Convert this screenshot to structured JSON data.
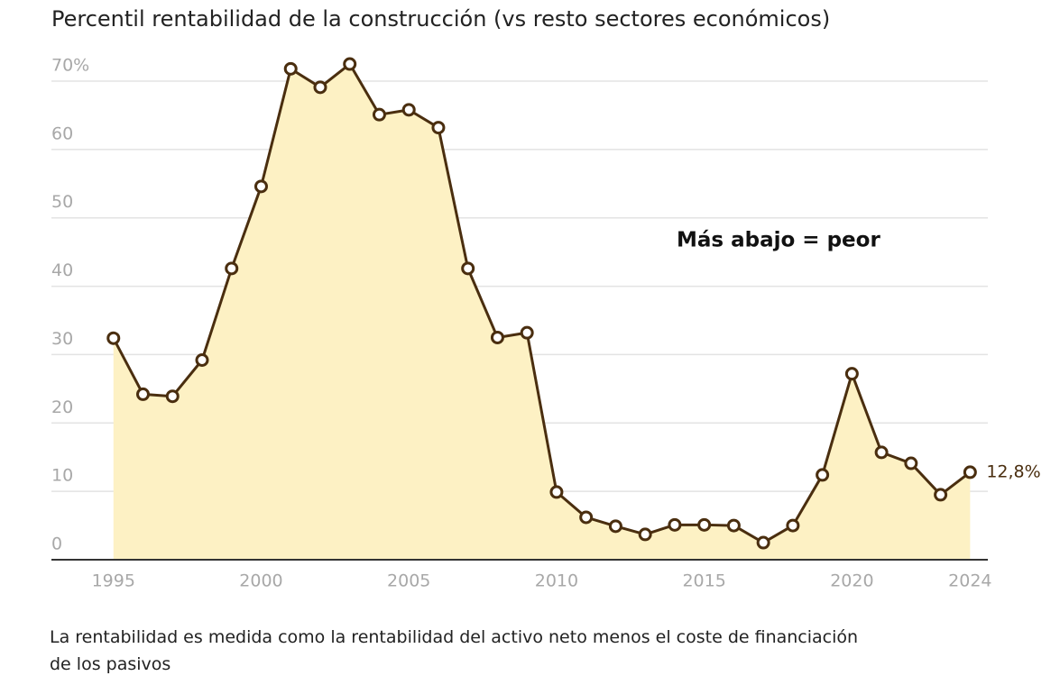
{
  "chart_data": {
    "type": "area-line",
    "title": "Percentil rentabilidad de la construcción (vs resto sectores económicos)",
    "annotation": "Más abajo = peor",
    "note": "La rentabilidad es medida como la rentabilidad del activo neto menos el coste de financiación de los pasivos",
    "x": [
      1995,
      1996,
      1997,
      1998,
      1999,
      2000,
      2001,
      2002,
      2003,
      2004,
      2005,
      2006,
      2007,
      2008,
      2009,
      2010,
      2011,
      2012,
      2013,
      2014,
      2015,
      2016,
      2017,
      2018,
      2019,
      2020,
      2021,
      2022,
      2023,
      2024
    ],
    "values": [
      32.4,
      24.2,
      23.9,
      29.2,
      42.6,
      54.6,
      71.8,
      69.1,
      72.5,
      65.1,
      65.8,
      63.2,
      42.6,
      32.5,
      33.2,
      9.9,
      6.2,
      4.9,
      3.7,
      5.1,
      5.1,
      5.0,
      2.5,
      5.0,
      12.4,
      27.2,
      15.7,
      14.1,
      9.5,
      12.8
    ],
    "value_labels": [
      null,
      null,
      null,
      null,
      null,
      null,
      null,
      null,
      null,
      null,
      null,
      null,
      null,
      null,
      null,
      null,
      null,
      null,
      null,
      null,
      null,
      null,
      null,
      null,
      null,
      null,
      null,
      null,
      null,
      "12,8%"
    ],
    "color": "#4a2e0f",
    "fill_color": "#fdf1c4",
    "xlim": [
      1992.9,
      2024.6
    ],
    "xticks": [
      1995,
      2000,
      2005,
      2010,
      2015,
      2020,
      2024
    ],
    "ylim": [
      0,
      70
    ],
    "yticks": [
      0,
      10,
      20,
      30,
      40,
      50,
      60,
      {
        "value": 70,
        "label": "70%"
      }
    ],
    "grid": true
  }
}
